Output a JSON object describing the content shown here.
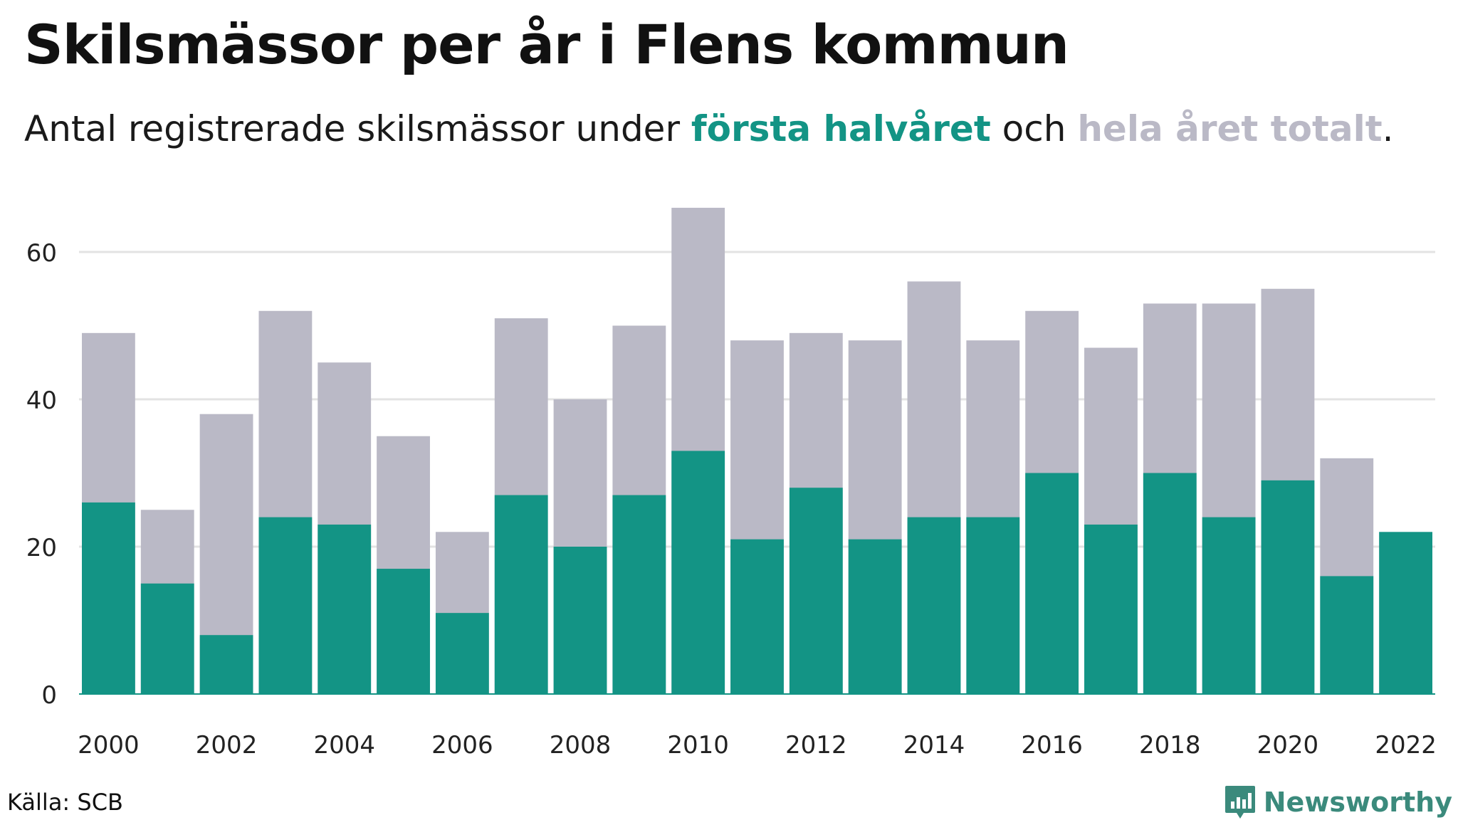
{
  "title": "Skilsmässor per år i Flens kommun",
  "subtitle": {
    "prefix": "Antal registrerade skilsmässor under ",
    "first_half": "första halvåret",
    "middle": " och ",
    "whole_year": "hela året totalt",
    "suffix": "."
  },
  "source": "Källa: SCB",
  "brand": {
    "name": "Newsworthy",
    "icon": "newsworthy-logo-icon"
  },
  "colors": {
    "first_half": "#139485",
    "whole_year": "#bab9c6",
    "grid": "#e3e3e3",
    "brand": "#3b8a7c"
  },
  "chart_data": {
    "type": "bar",
    "stacked": "overlay",
    "categories": [
      "2000",
      "2001",
      "2002",
      "2003",
      "2004",
      "2005",
      "2006",
      "2007",
      "2008",
      "2009",
      "2010",
      "2011",
      "2012",
      "2013",
      "2014",
      "2015",
      "2016",
      "2017",
      "2018",
      "2019",
      "2020",
      "2021",
      "2022"
    ],
    "series": [
      {
        "name": "hela året totalt",
        "values": [
          49,
          25,
          38,
          52,
          45,
          35,
          22,
          51,
          40,
          50,
          66,
          48,
          49,
          48,
          56,
          48,
          52,
          47,
          53,
          53,
          55,
          32,
          null
        ]
      },
      {
        "name": "första halvåret",
        "values": [
          26,
          15,
          8,
          24,
          23,
          17,
          11,
          27,
          20,
          27,
          33,
          21,
          28,
          21,
          24,
          24,
          30,
          23,
          30,
          24,
          29,
          16,
          22
        ]
      }
    ],
    "x_tick_labels": [
      "2000",
      "2002",
      "2004",
      "2006",
      "2008",
      "2010",
      "2012",
      "2014",
      "2016",
      "2018",
      "2020",
      "2022"
    ],
    "y_ticks": [
      0,
      20,
      40,
      60
    ],
    "ylim": [
      0,
      66
    ],
    "grid": true
  }
}
